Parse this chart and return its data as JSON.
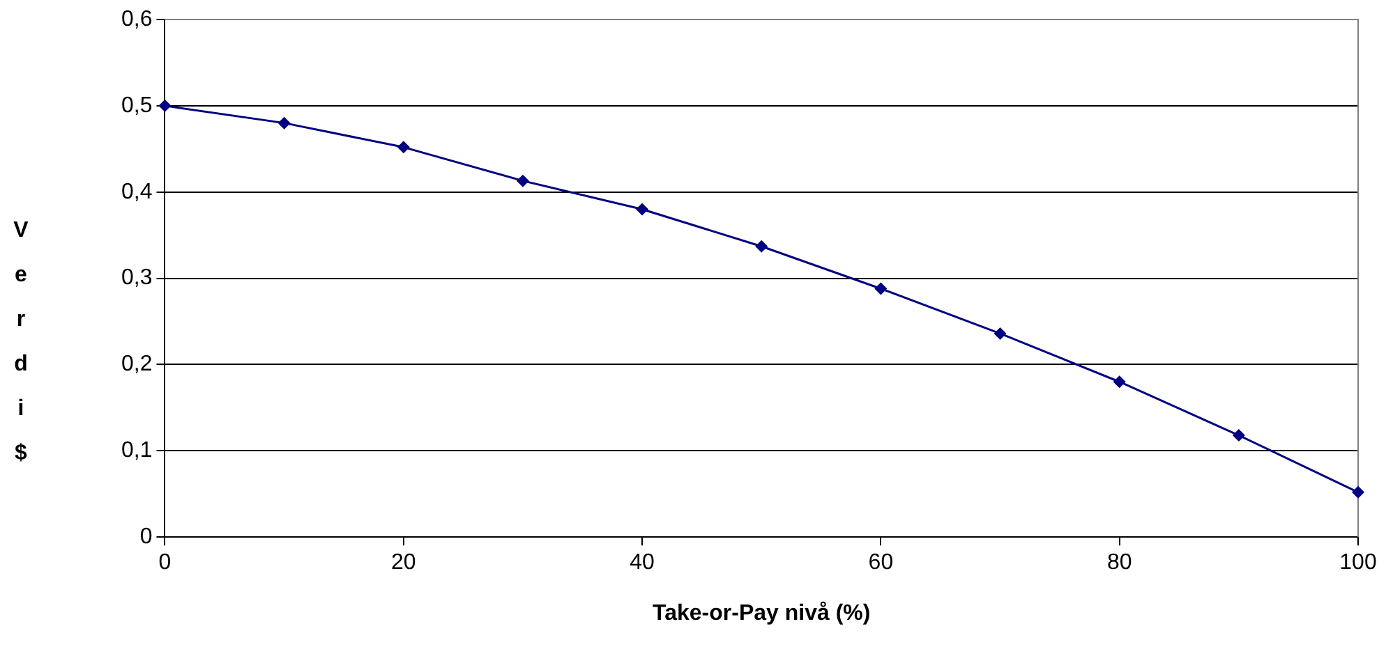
{
  "chart_data": {
    "type": "line",
    "xlabel": "Take-or-Pay nivå (%)",
    "ylabel": "Verdi $",
    "x": [
      0,
      10,
      20,
      30,
      40,
      50,
      60,
      70,
      80,
      90,
      100
    ],
    "series": [
      {
        "color": "#000080",
        "values": [
          0.5,
          0.48,
          0.452,
          0.413,
          0.38,
          0.337,
          0.288,
          0.236,
          0.18,
          0.118,
          0.052
        ]
      }
    ],
    "xlim": [
      0,
      100
    ],
    "xticks": [
      0,
      20,
      40,
      60,
      80,
      100
    ],
    "ylim": [
      0,
      0.6
    ],
    "yticks": [
      0,
      {
        "value": 0.1,
        "label": "0,1"
      },
      {
        "value": 0.2,
        "label": "0,2"
      },
      {
        "value": 0.3,
        "label": "0,3"
      },
      {
        "value": 0.4,
        "label": "0,4"
      },
      {
        "value": 0.5,
        "label": "0,5"
      },
      {
        "value": 0.6,
        "label": "0,6"
      }
    ],
    "grid": "y",
    "marker": "diamond",
    "line_style": "solid",
    "legend": false
  }
}
